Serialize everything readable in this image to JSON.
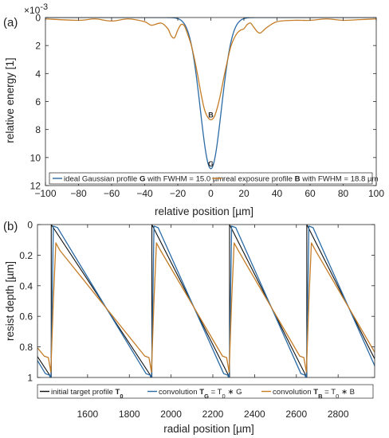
{
  "chart_data": [
    {
      "type": "line",
      "panel_label": "(a)",
      "title": "",
      "xlabel": "relative position [µm]",
      "ylabel": "relative energy [1]",
      "y_multiplier": "×10",
      "y_multiplier_exp": "-3",
      "xlim": [
        -100,
        100
      ],
      "ylim": [
        0,
        12
      ],
      "y_reversed": true,
      "xticks": [
        -100,
        -80,
        -60,
        -40,
        -20,
        0,
        20,
        40,
        60,
        80,
        100
      ],
      "yticks": [
        0,
        2,
        4,
        6,
        8,
        10,
        12
      ],
      "grid": false,
      "legend_position": "bottom",
      "series": [
        {
          "name": "ideal Gaussian profile G with FWHM = 15.0 µm",
          "legend_prefix": "ideal Gaussian profile ",
          "legend_bold": "G",
          "legend_suffix": " with FWHM = 15.0 µm",
          "color": "#2a6aa5",
          "model": "gaussian",
          "peak": 10.8,
          "fwhm": 15.0,
          "x_range": [
            -100,
            100
          ]
        },
        {
          "name": "real exposure profile B with FWHM = 18.8 µm",
          "legend_prefix": "real exposure profile ",
          "legend_bold": "B",
          "legend_suffix": " with FWHM = 18.8 µm",
          "color": "#c47c26",
          "x": [
            -100,
            -80,
            -70,
            -60,
            -50,
            -40,
            -36,
            -30,
            -26,
            -24,
            -22,
            -20,
            -18,
            -16,
            -14,
            -12,
            -10,
            -8,
            -6,
            -4,
            -2,
            0,
            2,
            4,
            6,
            8,
            10,
            12,
            14,
            16,
            18,
            20,
            22,
            24,
            26,
            28,
            30,
            34,
            40,
            50,
            60,
            70,
            80,
            90,
            100
          ],
          "y": [
            0.1,
            0.2,
            0.1,
            0.25,
            0.1,
            0.3,
            0.55,
            0.4,
            0.8,
            1.3,
            1.45,
            0.9,
            0.5,
            0.6,
            1.2,
            1.9,
            2.9,
            4.1,
            5.4,
            6.5,
            7.1,
            7.3,
            7.1,
            6.4,
            5.4,
            4.2,
            3.1,
            2.1,
            1.5,
            1.1,
            0.9,
            0.8,
            0.5,
            0.4,
            0.7,
            1.0,
            1.1,
            0.7,
            0.3,
            0.2,
            0.2,
            0.1,
            0.2,
            0.15,
            0.1
          ]
        }
      ],
      "annotations": [
        {
          "text": "B",
          "x": 0,
          "y": 7.3
        },
        {
          "text": "G",
          "x": 0,
          "y": 10.8
        }
      ]
    },
    {
      "type": "line",
      "panel_label": "(b)",
      "title": "",
      "xlabel": "radial position [µm]",
      "ylabel": "resist depth [µm]",
      "xlim": [
        1360,
        2975
      ],
      "ylim": [
        0,
        1
      ],
      "y_reversed": true,
      "xticks": [
        1600,
        1800,
        2000,
        2200,
        2400,
        2600,
        2800
      ],
      "yticks": [
        0,
        0.2,
        0.4,
        0.6,
        0.8,
        1
      ],
      "ytick_labels": [
        "0",
        "0.2",
        "0.4",
        "0.6",
        "0.8",
        "1"
      ],
      "grid": false,
      "legend_position": "bottom",
      "sawtooth_resets": [
        1426,
        1908,
        2280,
        2650
      ],
      "series": [
        {
          "name": "initial target profile T0",
          "legend_parts": [
            {
              "t": "initial target profile "
            },
            {
              "t": "T",
              "b": true
            },
            {
              "t": "0",
              "b": true,
              "sub": true
            }
          ],
          "color": "#111111",
          "model": "target",
          "line_width": 1.1
        },
        {
          "name": "convolution TG = T0 ∗ G",
          "legend_parts": [
            {
              "t": "convolution "
            },
            {
              "t": "T",
              "b": true
            },
            {
              "t": "G",
              "b": true,
              "sub": true
            },
            {
              "t": " = T"
            },
            {
              "t": "0",
              "sub": true
            },
            {
              "t": " ∗ G"
            }
          ],
          "color": "#2a6aa5",
          "model": "conv",
          "overshoot_top": 0.01,
          "overshoot_bottom": 0.985,
          "line_width": 1.3
        },
        {
          "name": "convolution TB = T0 ∗ B",
          "legend_parts": [
            {
              "t": "convolution "
            },
            {
              "t": "T",
              "b": true
            },
            {
              "t": "B",
              "b": true,
              "sub": true
            },
            {
              "t": " = T"
            },
            {
              "t": "0",
              "sub": true
            },
            {
              "t": " ∗ B"
            }
          ],
          "color": "#c47c26",
          "model": "conv",
          "overshoot_top": 0.12,
          "overshoot_bottom": 0.87,
          "line_width": 1.3
        }
      ]
    }
  ]
}
